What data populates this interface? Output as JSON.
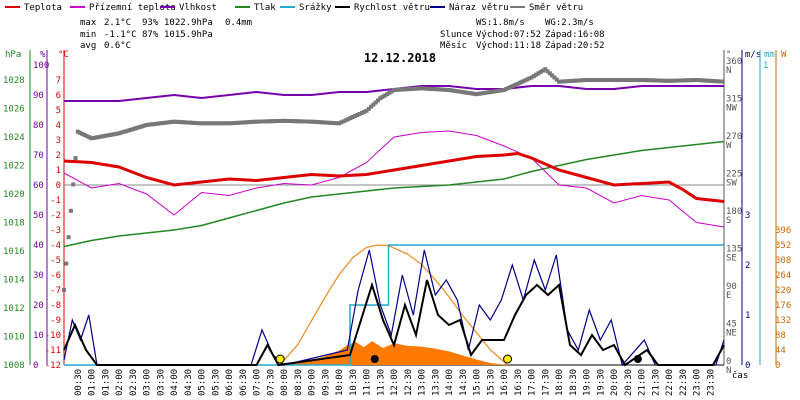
{
  "chart_data": {
    "type": "line",
    "title": "12.12.2018",
    "legend": [
      {
        "label": "Teplota",
        "color": "#dd0000"
      },
      {
        "label": "Přízemní teplota",
        "color": "#cc00cc"
      },
      {
        "label": "Vlhkost",
        "color": "#7700aa"
      },
      {
        "label": "Tlak",
        "color": "#228822"
      },
      {
        "label": "Srážky",
        "color": "#22aacc"
      },
      {
        "label": "Rychlost větru",
        "color": "#000000"
      },
      {
        "label": "Náraz větru",
        "color": "#000088"
      },
      {
        "label": "Směr větru",
        "color": "#777777"
      }
    ],
    "stats": {
      "max_label": "max",
      "max_temp": "2.1°C",
      "max_hum": "93%",
      "max_pres": "1022.9hPa",
      "max_rain": "0.4mm",
      "min_label": "min",
      "min_temp": "-1.1°C",
      "min_hum": "87%",
      "min_pres": "1015.9hPa",
      "avg_label": "avg",
      "avg_temp": "0.6°C",
      "ws": "WS:1.8m/s",
      "wg": "WG:2.3m/s",
      "sun_label": "Slunce",
      "sun_rise": "Východ:07:52",
      "sun_set": "Západ:16:08",
      "moon_label": "Měsíc",
      "moon_rise": "Východ:11:18",
      "moon_set": "Západ:20:52"
    },
    "axes": {
      "hpa_unit": "hPa",
      "hum_unit": "%",
      "temp_unit": "°C",
      "dir_unit": "°",
      "ms_unit": "m/s",
      "mm_unit": "mm",
      "wm_unit": "W",
      "time_label": "čas",
      "hpa_ticks": [
        "1028",
        "1026",
        "1024",
        "1022",
        "1020",
        "1018",
        "1016",
        "1014",
        "1012",
        "1010",
        "1008"
      ],
      "hum_ticks": [
        "100",
        "90",
        "80",
        "70",
        "60",
        "50",
        "40",
        "30",
        "20",
        "10",
        "0"
      ],
      "temp_ticks": [
        "7",
        "6",
        "5",
        "4",
        "3",
        "2",
        "1",
        "0",
        "-1",
        "-2",
        "-3",
        "-4",
        "-5",
        "-6",
        "-7",
        "-8",
        "-9",
        "-10",
        "-11",
        "-12"
      ],
      "dir_ticks": [
        {
          "deg": "360",
          "dir": "N"
        },
        {
          "deg": "315",
          "dir": "NW"
        },
        {
          "deg": "270",
          "dir": "W"
        },
        {
          "deg": "225",
          "dir": "SW"
        },
        {
          "deg": "180",
          "dir": "S"
        },
        {
          "deg": "135",
          "dir": "SE"
        },
        {
          "deg": "90",
          "dir": "E"
        },
        {
          "deg": "45",
          "dir": "NE"
        },
        {
          "deg": "0",
          "dir": "N"
        }
      ],
      "ms_ticks": [
        "3",
        "2",
        "1",
        "0"
      ],
      "mm_top": "1",
      "wm_ticks": [
        "396",
        "352",
        "308",
        "264",
        "220",
        "176",
        "132",
        "88",
        "44",
        "0"
      ],
      "time_ticks": [
        "00:30",
        "01:00",
        "01:30",
        "02:00",
        "02:30",
        "03:00",
        "03:30",
        "04:00",
        "04:30",
        "05:00",
        "05:30",
        "06:00",
        "06:30",
        "07:00",
        "07:30",
        "08:00",
        "08:30",
        "09:00",
        "09:30",
        "10:00",
        "10:30",
        "11:00",
        "11:30",
        "12:00",
        "12:30",
        "13:00",
        "13:30",
        "14:00",
        "14:30",
        "15:00",
        "15:30",
        "16:00",
        "16:30",
        "17:00",
        "17:30",
        "18:00",
        "18:30",
        "19:00",
        "19:30",
        "20:00",
        "20:30",
        "21:00",
        "21:30",
        "22:00",
        "22:30",
        "23:00",
        "23:30"
      ]
    },
    "series": {
      "temperature_c": [
        [
          0,
          1.6
        ],
        [
          1,
          1.5
        ],
        [
          2,
          1.2
        ],
        [
          3,
          0.5
        ],
        [
          4,
          0.0
        ],
        [
          5,
          0.2
        ],
        [
          6,
          0.4
        ],
        [
          7,
          0.3
        ],
        [
          8,
          0.5
        ],
        [
          9,
          0.7
        ],
        [
          10,
          0.6
        ],
        [
          11,
          0.7
        ],
        [
          12,
          1.0
        ],
        [
          13,
          1.3
        ],
        [
          14,
          1.6
        ],
        [
          15,
          1.9
        ],
        [
          16,
          2.0
        ],
        [
          16.5,
          2.1
        ],
        [
          17,
          1.8
        ],
        [
          18,
          1.0
        ],
        [
          19,
          0.5
        ],
        [
          20,
          0.0
        ],
        [
          21,
          0.1
        ],
        [
          22,
          0.2
        ],
        [
          22.5,
          -0.3
        ],
        [
          23,
          -0.9
        ],
        [
          24,
          -1.1
        ]
      ],
      "ground_temp_c": [
        [
          0,
          0.8
        ],
        [
          1,
          -0.2
        ],
        [
          2,
          0.1
        ],
        [
          3,
          -0.6
        ],
        [
          4,
          -2.0
        ],
        [
          5,
          -0.5
        ],
        [
          6,
          -0.7
        ],
        [
          7,
          -0.2
        ],
        [
          8,
          0.1
        ],
        [
          9,
          0.0
        ],
        [
          10,
          0.5
        ],
        [
          11,
          1.5
        ],
        [
          12,
          3.2
        ],
        [
          13,
          3.5
        ],
        [
          14,
          3.6
        ],
        [
          15,
          3.3
        ],
        [
          16,
          2.6
        ],
        [
          17,
          1.8
        ],
        [
          18,
          0.0
        ],
        [
          19,
          -0.2
        ],
        [
          20,
          -1.2
        ],
        [
          21,
          -0.7
        ],
        [
          22,
          -1.0
        ],
        [
          23,
          -2.5
        ],
        [
          24,
          -2.8
        ]
      ],
      "humidity_pct": [
        [
          0,
          88
        ],
        [
          2,
          88
        ],
        [
          3,
          89
        ],
        [
          4,
          90
        ],
        [
          5,
          89
        ],
        [
          6,
          90
        ],
        [
          7,
          91
        ],
        [
          8,
          90
        ],
        [
          9,
          90
        ],
        [
          10,
          91
        ],
        [
          11,
          91
        ],
        [
          12,
          92
        ],
        [
          13,
          93
        ],
        [
          14,
          93
        ],
        [
          15,
          92
        ],
        [
          16,
          92
        ],
        [
          17,
          93
        ],
        [
          18,
          93
        ],
        [
          19,
          92
        ],
        [
          20,
          92
        ],
        [
          21,
          93
        ],
        [
          22,
          93
        ],
        [
          23,
          93
        ],
        [
          24,
          93
        ]
      ],
      "pressure_hpa": [
        [
          0,
          1015.9
        ],
        [
          1,
          1016.3
        ],
        [
          2,
          1016.6
        ],
        [
          3,
          1016.8
        ],
        [
          4,
          1017.0
        ],
        [
          5,
          1017.3
        ],
        [
          6,
          1017.8
        ],
        [
          7,
          1018.3
        ],
        [
          8,
          1018.8
        ],
        [
          9,
          1019.2
        ],
        [
          10,
          1019.4
        ],
        [
          11,
          1019.6
        ],
        [
          12,
          1019.8
        ],
        [
          13,
          1019.9
        ],
        [
          14,
          1020.0
        ],
        [
          15,
          1020.2
        ],
        [
          16,
          1020.4
        ],
        [
          17,
          1020.9
        ],
        [
          18,
          1021.3
        ],
        [
          19,
          1021.7
        ],
        [
          20,
          1022.0
        ],
        [
          21,
          1022.3
        ],
        [
          22,
          1022.5
        ],
        [
          23,
          1022.7
        ],
        [
          24,
          1022.9
        ]
      ],
      "rain_mm": [
        [
          0,
          0
        ],
        [
          10.4,
          0
        ],
        [
          10.4,
          0.2
        ],
        [
          11.8,
          0.2
        ],
        [
          11.8,
          0.4
        ],
        [
          24,
          0.4
        ]
      ],
      "wind_dir_deg": [
        [
          0,
          90
        ],
        [
          0.5,
          280
        ],
        [
          1,
          272
        ],
        [
          2,
          278
        ],
        [
          3,
          288
        ],
        [
          4,
          292
        ],
        [
          5,
          290
        ],
        [
          6,
          290
        ],
        [
          7,
          292
        ],
        [
          8,
          293
        ],
        [
          9,
          292
        ],
        [
          10,
          290
        ],
        [
          11,
          305
        ],
        [
          11.5,
          320
        ],
        [
          12,
          330
        ],
        [
          13,
          332
        ],
        [
          14,
          330
        ],
        [
          15,
          325
        ],
        [
          16,
          330
        ],
        [
          17,
          345
        ],
        [
          17.5,
          355
        ],
        [
          18,
          340
        ],
        [
          19,
          342
        ],
        [
          20,
          342
        ],
        [
          21,
          342
        ],
        [
          22,
          341
        ],
        [
          23,
          342
        ],
        [
          24,
          340
        ]
      ],
      "wind_speed_ms": [
        [
          0,
          0.3
        ],
        [
          0.4,
          0.8
        ],
        [
          0.8,
          0.3
        ],
        [
          1.2,
          0.0
        ],
        [
          7,
          0.0
        ],
        [
          7.4,
          0.4
        ],
        [
          7.8,
          0.0
        ],
        [
          10.4,
          0.2
        ],
        [
          10.8,
          0.9
        ],
        [
          11.2,
          1.6
        ],
        [
          11.6,
          0.9
        ],
        [
          12,
          0.4
        ],
        [
          12.4,
          1.2
        ],
        [
          12.8,
          0.6
        ],
        [
          13.2,
          1.7
        ],
        [
          13.6,
          1.0
        ],
        [
          14,
          0.8
        ],
        [
          14.4,
          0.9
        ],
        [
          14.8,
          0.2
        ],
        [
          15.2,
          0.5
        ],
        [
          15.6,
          0.5
        ],
        [
          16,
          0.5
        ],
        [
          16.4,
          1.0
        ],
        [
          16.8,
          1.4
        ],
        [
          17.2,
          1.6
        ],
        [
          17.6,
          1.4
        ],
        [
          18,
          1.6
        ],
        [
          18.4,
          0.4
        ],
        [
          18.8,
          0.2
        ],
        [
          19.2,
          0.6
        ],
        [
          19.6,
          0.3
        ],
        [
          20,
          0.4
        ],
        [
          20.4,
          0.0
        ],
        [
          21.2,
          0.3
        ],
        [
          21.6,
          0.0
        ],
        [
          23.6,
          0.0
        ],
        [
          24,
          0.4
        ]
      ],
      "wind_gust_ms": [
        [
          0,
          0.1
        ],
        [
          0.3,
          0.9
        ],
        [
          0.6,
          0.5
        ],
        [
          0.9,
          1.0
        ],
        [
          1.2,
          0.0
        ],
        [
          6.8,
          0.0
        ],
        [
          7.2,
          0.7
        ],
        [
          7.6,
          0.2
        ],
        [
          8,
          0.0
        ],
        [
          10.3,
          0.3
        ],
        [
          10.7,
          1.5
        ],
        [
          11.1,
          2.3
        ],
        [
          11.5,
          1.2
        ],
        [
          11.9,
          0.6
        ],
        [
          12.3,
          1.8
        ],
        [
          12.7,
          1.0
        ],
        [
          13.1,
          2.3
        ],
        [
          13.5,
          1.4
        ],
        [
          13.9,
          1.7
        ],
        [
          14.3,
          1.3
        ],
        [
          14.7,
          0.3
        ],
        [
          15.1,
          1.2
        ],
        [
          15.5,
          0.9
        ],
        [
          15.9,
          1.3
        ],
        [
          16.3,
          2.0
        ],
        [
          16.7,
          1.3
        ],
        [
          17.1,
          2.1
        ],
        [
          17.5,
          1.5
        ],
        [
          17.9,
          2.2
        ],
        [
          18.3,
          0.7
        ],
        [
          18.7,
          0.3
        ],
        [
          19.1,
          1.1
        ],
        [
          19.5,
          0.5
        ],
        [
          19.9,
          0.9
        ],
        [
          20.3,
          0.0
        ],
        [
          21.1,
          0.5
        ],
        [
          21.5,
          0.0
        ],
        [
          23.7,
          0.0
        ],
        [
          24,
          0.5
        ]
      ],
      "solar_wm2": [
        [
          7.86,
          0
        ],
        [
          8.5,
          8
        ],
        [
          9,
          14
        ],
        [
          9.5,
          26
        ],
        [
          10,
          42
        ],
        [
          10.3,
          58
        ],
        [
          10.6,
          68
        ],
        [
          10.9,
          52
        ],
        [
          11.2,
          70
        ],
        [
          11.6,
          50
        ],
        [
          12,
          64
        ],
        [
          12.5,
          56
        ],
        [
          13,
          54
        ],
        [
          13.5,
          48
        ],
        [
          14,
          40
        ],
        [
          14.5,
          28
        ],
        [
          15,
          16
        ],
        [
          15.5,
          6
        ],
        [
          16.13,
          0
        ]
      ],
      "solar_theoretical_wm2": [
        [
          7.86,
          0
        ],
        [
          8.5,
          60
        ],
        [
          9,
          130
        ],
        [
          9.5,
          200
        ],
        [
          10,
          265
        ],
        [
          10.5,
          315
        ],
        [
          11,
          345
        ],
        [
          11.4,
          352
        ],
        [
          11.8,
          350
        ],
        [
          12.5,
          325
        ],
        [
          13,
          295
        ],
        [
          13.5,
          250
        ],
        [
          14,
          200
        ],
        [
          14.5,
          145
        ],
        [
          15,
          95
        ],
        [
          15.5,
          45
        ],
        [
          16.13,
          0
        ]
      ]
    }
  }
}
